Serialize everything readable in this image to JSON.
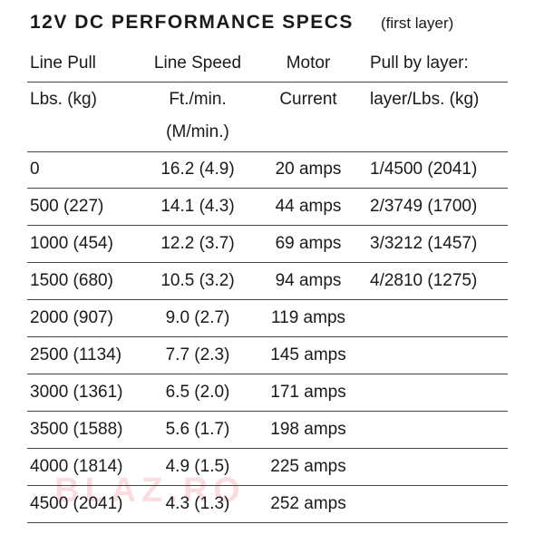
{
  "header": {
    "title": "12V DC PERFORMANCE SPECS",
    "subtitle": "(first layer)"
  },
  "table": {
    "header_top": [
      "Line Pull",
      "Line Speed",
      "Motor",
      "Pull by layer:"
    ],
    "header_sub": [
      [
        "Lbs. (kg)"
      ],
      [
        "Ft./min.",
        "(M/min.)"
      ],
      [
        "Current"
      ],
      [
        "layer/Lbs. (kg)"
      ]
    ],
    "rows": [
      [
        "0",
        "16.2 (4.9)",
        "20 amps",
        "1/4500 (2041)"
      ],
      [
        "500 (227)",
        "14.1 (4.3)",
        "44 amps",
        "2/3749 (1700)"
      ],
      [
        "1000 (454)",
        "12.2 (3.7)",
        "69 amps",
        "3/3212 (1457)"
      ],
      [
        "1500 (680)",
        "10.5 (3.2)",
        "94 amps",
        "4/2810 (1275)"
      ],
      [
        "2000 (907)",
        "9.0 (2.7)",
        "119 amps"
      ],
      [
        "2500 (1134)",
        "7.7 (2.3)",
        "145 amps"
      ],
      [
        "3000 (1361)",
        "6.5 (2.0)",
        "171 amps"
      ],
      [
        "3500 (1588)",
        "5.6 (1.7)",
        "198 amps"
      ],
      [
        "4000 (1814)",
        "4.9 (1.5)",
        "225 amps"
      ],
      [
        "4500 (2041)",
        "4.3 (1.3)",
        "252 amps"
      ]
    ]
  },
  "watermark": "BLAZ.RO"
}
